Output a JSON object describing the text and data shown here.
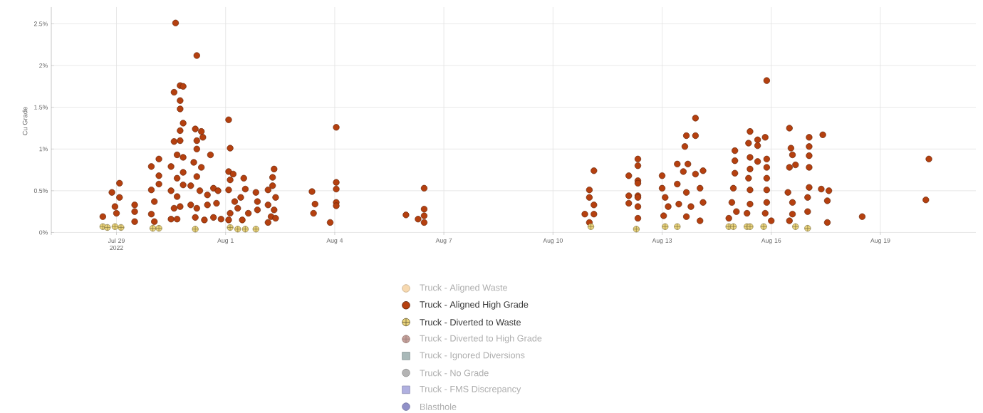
{
  "chart_data": {
    "type": "scatter",
    "ylabel": "Cu Grade",
    "grid": true,
    "legend": "bottom",
    "xlim": [
      "2022-07-27T05:00",
      "2022-08-21T15:00"
    ],
    "ylim": [
      -0.03,
      2.7
    ],
    "xticks": [
      {
        "value": "2022-07-29",
        "label": "Jul 29 2022"
      },
      {
        "value": "2022-08-01",
        "label": "Aug 1"
      },
      {
        "value": "2022-08-04",
        "label": "Aug 4"
      },
      {
        "value": "2022-08-07",
        "label": "Aug 7"
      },
      {
        "value": "2022-08-10",
        "label": "Aug 10"
      },
      {
        "value": "2022-08-13",
        "label": "Aug 13"
      },
      {
        "value": "2022-08-16",
        "label": "Aug 16"
      },
      {
        "value": "2022-08-19",
        "label": "Aug 19"
      }
    ],
    "yticks": [
      {
        "value": 0,
        "label": "0%"
      },
      {
        "value": 0.5,
        "label": "0.5%"
      },
      {
        "value": 1,
        "label": "1%"
      },
      {
        "value": 1.5,
        "label": "1.5%"
      },
      {
        "value": 2,
        "label": "2%"
      },
      {
        "value": 2.5,
        "label": "2.5%"
      }
    ],
    "series": [
      {
        "name": "Truck - Aligned Waste",
        "color": "#f7d9b0",
        "marker": "circle"
      },
      {
        "name": "Truck - Aligned High Grade",
        "color": "#b5400f",
        "marker": "circle",
        "x": [
          "2022-07-28T15:00",
          "2022-07-28T21:00",
          "2022-07-29T02:00",
          "2022-07-29T02:00",
          "2022-07-28T23:00",
          "2022-07-29T00:00",
          "2022-07-29T12:00",
          "2022-07-29T12:00",
          "2022-07-29T12:00",
          "2022-07-29T23:00",
          "2022-07-30T04:00",
          "2022-07-30T04:00",
          "2022-07-29T23:00",
          "2022-07-30T04:00",
          "2022-07-30T01:00",
          "2022-07-29T23:00",
          "2022-07-30T01:00",
          "2022-07-30T15:00",
          "2022-07-30T14:00",
          "2022-07-30T18:00",
          "2022-07-30T20:00",
          "2022-07-30T18:00",
          "2022-07-30T18:00",
          "2022-07-30T20:00",
          "2022-07-30T18:00",
          "2022-07-30T14:00",
          "2022-07-30T18:00",
          "2022-07-30T16:00",
          "2022-07-30T20:00",
          "2022-07-30T12:00",
          "2022-07-30T16:00",
          "2022-07-30T20:00",
          "2022-07-30T12:00",
          "2022-07-30T16:00",
          "2022-07-30T20:00",
          "2022-07-30T14:00",
          "2022-07-30T18:00",
          "2022-07-30T12:00",
          "2022-07-30T16:00",
          "2022-07-31T05:00",
          "2022-07-31T04:00",
          "2022-07-31T08:00",
          "2022-07-31T09:00",
          "2022-07-31T05:00",
          "2022-07-31T05:00",
          "2022-07-31T14:00",
          "2022-07-31T03:00",
          "2022-07-31T08:00",
          "2022-07-31T05:00",
          "2022-07-31T01:00",
          "2022-07-31T07:00",
          "2022-07-31T12:00",
          "2022-07-31T16:00",
          "2022-07-31T19:00",
          "2022-07-31T01:00",
          "2022-07-31T05:00",
          "2022-07-31T12:00",
          "2022-07-31T18:00",
          "2022-07-31T04:00",
          "2022-07-31T10:00",
          "2022-07-31T16:00",
          "2022-07-31T21:00",
          "2022-08-01T02:00",
          "2022-08-01T03:00",
          "2022-08-01T02:00",
          "2022-08-01T05:00",
          "2022-08-01T03:00",
          "2022-08-01T12:00",
          "2022-08-01T13:00",
          "2022-08-01T02:00",
          "2022-08-01T06:00",
          "2022-08-01T10:00",
          "2022-08-01T03:00",
          "2022-08-01T08:00",
          "2022-08-01T15:00",
          "2022-08-01T02:00",
          "2022-08-01T11:00",
          "2022-08-01T20:00",
          "2022-08-01T21:00",
          "2022-08-01T21:00",
          "2022-08-02T08:00",
          "2022-08-02T07:00",
          "2022-08-02T07:00",
          "2022-08-02T04:00",
          "2022-08-02T09:00",
          "2022-08-02T04:00",
          "2022-08-02T08:00",
          "2022-08-02T06:00",
          "2022-08-02T04:00",
          "2022-08-02T09:00",
          "2022-08-03T09:00",
          "2022-08-03T11:00",
          "2022-08-03T10:00",
          "2022-08-04T01:00",
          "2022-08-04T01:00",
          "2022-08-04T01:00",
          "2022-08-04T01:00",
          "2022-08-04T01:00",
          "2022-08-03T21:00",
          "2022-08-05T23:00",
          "2022-08-06T07:00",
          "2022-08-06T11:00",
          "2022-08-06T11:00",
          "2022-08-06T11:00",
          "2022-08-06T11:00",
          "2022-08-11T03:00",
          "2022-08-11T00:00",
          "2022-08-11T00:00",
          "2022-08-11T03:00",
          "2022-08-10T21:00",
          "2022-08-11T03:00",
          "2022-08-11T00:00",
          "2022-08-12T02:00",
          "2022-08-12T08:00",
          "2022-08-12T08:00",
          "2022-08-12T02:00",
          "2022-08-12T02:00",
          "2022-08-12T08:00",
          "2022-08-12T08:00",
          "2022-08-12T08:00",
          "2022-08-12T08:00",
          "2022-08-12T08:00",
          "2022-08-12T08:00",
          "2022-08-13T00:00",
          "2022-08-13T00:00",
          "2022-08-13T02:00",
          "2022-08-13T04:00",
          "2022-08-13T01:00",
          "2022-08-13T22:00",
          "2022-08-13T16:00",
          "2022-08-13T22:00",
          "2022-08-13T15:00",
          "2022-08-13T10:00",
          "2022-08-13T17:00",
          "2022-08-13T14:00",
          "2022-08-13T22:00",
          "2022-08-14T03:00",
          "2022-08-13T10:00",
          "2022-08-13T16:00",
          "2022-08-14T01:00",
          "2022-08-13T11:00",
          "2022-08-13T19:00",
          "2022-08-14T03:00",
          "2022-08-13T16:00",
          "2022-08-14T01:00",
          "2022-08-15T00:00",
          "2022-08-15T00:00",
          "2022-08-15T00:00",
          "2022-08-14T23:00",
          "2022-08-14T22:00",
          "2022-08-15T01:00",
          "2022-08-14T20:00",
          "2022-08-15T10:00",
          "2022-08-15T15:00",
          "2022-08-15T20:00",
          "2022-08-15T09:00",
          "2022-08-15T15:00",
          "2022-08-15T10:00",
          "2022-08-15T15:00",
          "2022-08-15T21:00",
          "2022-08-15T21:00",
          "2022-08-15T10:00",
          "2022-08-15T09:00",
          "2022-08-15T21:00",
          "2022-08-15T21:00",
          "2022-08-15T10:00",
          "2022-08-15T21:00",
          "2022-08-15T10:00",
          "2022-08-15T08:00",
          "2022-08-15T20:00",
          "2022-08-16T00:00",
          "2022-08-15T21:00",
          "2022-08-16T12:00",
          "2022-08-16T13:00",
          "2022-08-16T14:00",
          "2022-08-16T12:00",
          "2022-08-16T16:00",
          "2022-08-17T01:00",
          "2022-08-17T01:00",
          "2022-08-17T01:00",
          "2022-08-17T01:00",
          "2022-08-16T11:00",
          "2022-08-16T14:00",
          "2022-08-17T01:00",
          "2022-08-17T00:00",
          "2022-08-17T00:00",
          "2022-08-16T14:00",
          "2022-08-16T12:00",
          "2022-08-17T10:00",
          "2022-08-17T09:00",
          "2022-08-17T14:00",
          "2022-08-17T13:00",
          "2022-08-17T13:00",
          "2022-08-18T12:00",
          "2022-08-20T08:00",
          "2022-08-20T06:00"
        ],
        "values": [
          0.19,
          0.48,
          0.59,
          0.42,
          0.31,
          0.23,
          0.33,
          0.25,
          0.13,
          0.79,
          0.88,
          0.68,
          0.51,
          0.58,
          0.37,
          0.22,
          0.13,
          2.51,
          1.68,
          1.76,
          1.75,
          1.58,
          1.48,
          1.31,
          1.22,
          1.09,
          1.1,
          0.93,
          0.9,
          0.79,
          0.65,
          0.72,
          0.5,
          0.43,
          0.57,
          0.29,
          0.31,
          0.16,
          0.16,
          2.12,
          1.24,
          1.21,
          1.14,
          1.1,
          1.0,
          0.93,
          0.84,
          0.78,
          0.67,
          0.56,
          0.5,
          0.45,
          0.53,
          0.5,
          0.33,
          0.29,
          0.33,
          0.35,
          0.18,
          0.15,
          0.18,
          0.16,
          1.35,
          1.01,
          0.73,
          0.7,
          0.63,
          0.65,
          0.52,
          0.51,
          0.37,
          0.42,
          0.23,
          0.29,
          0.23,
          0.15,
          0.15,
          0.48,
          0.37,
          0.27,
          0.76,
          0.66,
          0.56,
          0.51,
          0.42,
          0.33,
          0.27,
          0.19,
          0.12,
          0.17,
          0.49,
          0.34,
          0.23,
          1.26,
          0.6,
          0.52,
          0.36,
          0.32,
          0.12,
          0.21,
          0.16,
          0.53,
          0.28,
          0.2,
          0.12,
          0.74,
          0.51,
          0.42,
          0.33,
          0.22,
          0.22,
          0.12,
          0.68,
          0.88,
          0.8,
          0.44,
          0.35,
          0.62,
          0.44,
          0.59,
          0.42,
          0.31,
          0.17,
          0.68,
          0.53,
          0.42,
          0.31,
          0.2,
          1.37,
          1.16,
          1.16,
          1.03,
          0.82,
          0.82,
          0.73,
          0.7,
          0.74,
          0.58,
          0.48,
          0.53,
          0.34,
          0.31,
          0.36,
          0.19,
          0.14,
          0.98,
          0.86,
          0.71,
          0.53,
          0.36,
          0.25,
          0.17,
          1.21,
          1.11,
          1.14,
          1.07,
          1.04,
          0.9,
          0.85,
          0.88,
          0.78,
          0.76,
          0.65,
          0.65,
          0.51,
          0.51,
          0.36,
          0.34,
          0.23,
          0.23,
          0.14,
          1.82,
          1.25,
          1.01,
          0.93,
          0.78,
          0.81,
          1.14,
          1.03,
          0.92,
          0.78,
          0.48,
          0.36,
          0.54,
          0.42,
          0.25,
          0.22,
          0.14,
          1.17,
          0.52,
          0.5,
          0.38,
          0.12,
          0.19,
          0.88,
          0.39
        ]
      },
      {
        "name": "Truck - Diverted to Waste",
        "color": "#e8d27a",
        "marker": "cross",
        "x": [
          "2022-07-28T15:00",
          "2022-07-28T18:00",
          "2022-07-28T23:00",
          "2022-07-29T03:00",
          "2022-07-30T00:00",
          "2022-07-30T04:00",
          "2022-07-31T04:00",
          "2022-08-01T03:00",
          "2022-08-01T08:00",
          "2022-08-01T13:00",
          "2022-08-01T20:00",
          "2022-08-11T01:00",
          "2022-08-12T07:00",
          "2022-08-13T02:00",
          "2022-08-13T10:00",
          "2022-08-14T20:00",
          "2022-08-14T23:00",
          "2022-08-15T08:00",
          "2022-08-15T10:00",
          "2022-08-15T19:00",
          "2022-08-16T16:00",
          "2022-08-16T23:00",
          "2022-08-17T00:00"
        ],
        "values": [
          0.07,
          0.06,
          0.07,
          0.06,
          0.05,
          0.05,
          0.04,
          0.06,
          0.04,
          0.04,
          0.04,
          0.07,
          0.04,
          0.07,
          0.07,
          0.07,
          0.07,
          0.07,
          0.07,
          0.07,
          0.07,
          null,
          0.05
        ]
      },
      {
        "name": "Truck - Diverted to High Grade",
        "color": "#c4a09a",
        "marker": "cross"
      },
      {
        "name": "Truck - Ignored Diversions",
        "color": "#a9b9b9",
        "marker": "square"
      },
      {
        "name": "Truck - No Grade",
        "color": "#b4b4b4",
        "marker": "circle"
      },
      {
        "name": "Truck - FMS Discrepancy",
        "color": "#b0b0e0",
        "marker": "square"
      },
      {
        "name": "Blasthole",
        "color": "#9090c8",
        "marker": "circle"
      }
    ]
  }
}
